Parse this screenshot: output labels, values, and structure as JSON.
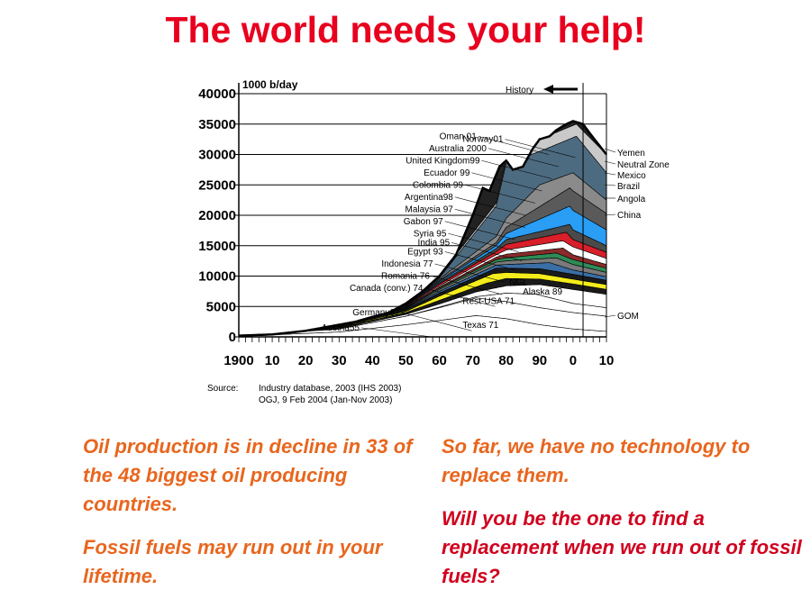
{
  "title": "The world needs your help!",
  "chart_data": {
    "type": "area",
    "unit_label": "1000 b/day",
    "ylim": [
      0,
      40000
    ],
    "y_ticks": [
      0,
      5000,
      10000,
      15000,
      20000,
      25000,
      30000,
      35000,
      40000
    ],
    "y_tick_labels": [
      "0",
      "5000",
      "10000",
      "15000",
      "20000",
      "25000",
      "30000",
      "35000",
      "40000"
    ],
    "xlim": [
      1900,
      2010
    ],
    "x_ticks": [
      1900,
      1910,
      1920,
      1930,
      1940,
      1950,
      1960,
      1970,
      1980,
      1990,
      2000,
      2010
    ],
    "x_tick_labels": [
      "1900",
      "10",
      "20",
      "30",
      "40",
      "50",
      "60",
      "70",
      "80",
      "90",
      "0",
      "10"
    ],
    "grid": true,
    "history_label": "History",
    "history_end_year": 2003,
    "total": {
      "x": [
        1900,
        1910,
        1920,
        1930,
        1935,
        1940,
        1945,
        1950,
        1955,
        1960,
        1965,
        1970,
        1973,
        1975,
        1978,
        1980,
        1982,
        1985,
        1988,
        1990,
        1993,
        1995,
        1998,
        2000,
        2003,
        2005,
        2010
      ],
      "y": [
        200,
        400,
        1000,
        2000,
        2500,
        3300,
        4000,
        5500,
        7500,
        10000,
        13500,
        20000,
        24500,
        24000,
        28000,
        29000,
        27500,
        28000,
        31000,
        32500,
        33000,
        34000,
        35000,
        35500,
        35000,
        33500,
        30000
      ]
    },
    "bands": [
      {
        "name": "Texas 71",
        "color": "#ffffff",
        "x": [
          1900,
          1930,
          1950,
          1960,
          1971,
          1980,
          1990,
          2000,
          2010
        ],
        "y": [
          100,
          800,
          2000,
          2700,
          3500,
          3000,
          2000,
          1300,
          900
        ]
      },
      {
        "name": "Rest-USA 71",
        "color": "#ffffff",
        "x": [
          1900,
          1930,
          1950,
          1960,
          1971,
          1980,
          1990,
          2000,
          2010
        ],
        "y": [
          150,
          1300,
          3400,
          4800,
          6400,
          5800,
          4800,
          4000,
          3400
        ]
      },
      {
        "name": "Alaska 89",
        "color": "#ffffff",
        "x": [
          1900,
          1930,
          1950,
          1960,
          1971,
          1980,
          1989,
          2000,
          2010
        ],
        "y": [
          150,
          1300,
          3400,
          4900,
          6600,
          7200,
          7000,
          5500,
          4800
        ]
      },
      {
        "name": "NGL",
        "color": "#ffffff",
        "x": [
          1900,
          1930,
          1950,
          1960,
          1971,
          1980,
          1990,
          2000,
          2010
        ],
        "y": [
          200,
          1400,
          3700,
          5400,
          7400,
          8400,
          8600,
          7800,
          7000
        ]
      },
      {
        "name": "Canada (conv.) 74",
        "color": "#1a1a1a",
        "x": [
          1900,
          1930,
          1950,
          1960,
          1974,
          1980,
          1990,
          2000,
          2010
        ],
        "y": [
          200,
          1500,
          4000,
          6000,
          8800,
          9600,
          9500,
          8700,
          7800
        ]
      },
      {
        "name": "Romania 76",
        "color": "#f4ec1c",
        "x": [
          1900,
          1930,
          1950,
          1960,
          1976,
          1980,
          1990,
          2000,
          2010
        ],
        "y": [
          200,
          1600,
          4200,
          6700,
          10400,
          10600,
          10400,
          9500,
          8600
        ]
      },
      {
        "name": "Indonesia 77",
        "color": "#1a1a1a",
        "x": [
          1900,
          1930,
          1950,
          1960,
          1977,
          1980,
          1990,
          2000,
          2010
        ],
        "y": [
          200,
          1700,
          4500,
          7200,
          11300,
          11300,
          11200,
          10300,
          9300
        ]
      },
      {
        "name": "Egypt 93",
        "color": "#3a6ea5",
        "x": [
          1900,
          1930,
          1950,
          1960,
          1977,
          1980,
          1993,
          2000,
          2010
        ],
        "y": [
          200,
          1700,
          4600,
          7500,
          11800,
          11900,
          12200,
          11000,
          9900
        ]
      },
      {
        "name": "India 95",
        "color": "#7a7a7a",
        "x": [
          1900,
          1930,
          1950,
          1960,
          1977,
          1980,
          1995,
          2000,
          2010
        ],
        "y": [
          200,
          1800,
          4700,
          7800,
          12300,
          12500,
          13000,
          11900,
          10600
        ]
      },
      {
        "name": "Syria 95",
        "color": "#2e8b57",
        "x": [
          1900,
          1930,
          1950,
          1960,
          1977,
          1980,
          1995,
          2000,
          2010
        ],
        "y": [
          200,
          1800,
          4800,
          8000,
          12700,
          13000,
          13800,
          12700,
          11300
        ]
      },
      {
        "name": "Gabon 97",
        "color": "#8b2a2a",
        "x": [
          1900,
          1930,
          1950,
          1960,
          1977,
          1980,
          1997,
          2000,
          2010
        ],
        "y": [
          200,
          1800,
          4900,
          8200,
          13100,
          13600,
          14600,
          13500,
          11900
        ]
      },
      {
        "name": "Malaysia 97",
        "color": "#ffffff",
        "x": [
          1900,
          1930,
          1950,
          1960,
          1977,
          1980,
          1997,
          2000,
          2010
        ],
        "y": [
          200,
          1800,
          5000,
          8400,
          13500,
          14300,
          15800,
          14800,
          12900
        ]
      },
      {
        "name": "Argentina 98",
        "color": "#d81f2a",
        "x": [
          1900,
          1930,
          1950,
          1960,
          1977,
          1980,
          1998,
          2000,
          2010
        ],
        "y": [
          200,
          1800,
          5100,
          8700,
          14000,
          15200,
          17200,
          16000,
          13900
        ]
      },
      {
        "name": "Colombia 99",
        "color": "#4a4a4a",
        "x": [
          1900,
          1930,
          1950,
          1960,
          1977,
          1980,
          1999,
          2000,
          2010
        ],
        "y": [
          200,
          1800,
          5200,
          8900,
          14500,
          16000,
          18500,
          17600,
          15000
        ]
      },
      {
        "name": "Ecuador 99",
        "color": "#2a9df4",
        "x": [
          1900,
          1930,
          1950,
          1960,
          1977,
          1980,
          1999,
          2000,
          2010
        ],
        "y": [
          200,
          1800,
          5300,
          9100,
          15000,
          17000,
          21500,
          20800,
          17600
        ]
      },
      {
        "name": "United Kingdom 99",
        "color": "#5a5a5a",
        "x": [
          1900,
          1930,
          1950,
          1960,
          1977,
          1980,
          1999,
          2000,
          2010
        ],
        "y": [
          200,
          1800,
          5300,
          9300,
          15500,
          18000,
          24500,
          24000,
          20300
        ]
      },
      {
        "name": "Australia 2000",
        "color": "#8a8a8a",
        "x": [
          1900,
          1930,
          1950,
          1960,
          1977,
          1980,
          1990,
          2000,
          2010
        ],
        "y": [
          200,
          1800,
          5300,
          9500,
          16500,
          19500,
          25000,
          27000,
          22500
        ]
      },
      {
        "name": "Oman 01",
        "color": "#4d6b80",
        "x": [
          1900,
          1930,
          1950,
          1960,
          1977,
          1980,
          1990,
          2001,
          2010
        ],
        "y": [
          200,
          1900,
          5400,
          9700,
          21500,
          28500,
          30500,
          33000,
          27000
        ]
      },
      {
        "name": "Norway 01",
        "color": "#c9c9c9",
        "x": [
          1900,
          1930,
          1950,
          1960,
          1977,
          1980,
          1990,
          2001,
          2010
        ],
        "y": [
          200,
          2000,
          5500,
          10000,
          22000,
          29000,
          32500,
          35000,
          30000
        ]
      }
    ],
    "band_labels_left": [
      {
        "text": "Oman 01",
        "x": 1990,
        "y": 33000
      },
      {
        "text": "Norway01",
        "x": 1998,
        "y": 32500
      },
      {
        "text": "Australia 2000",
        "x": 1993,
        "y": 31000
      },
      {
        "text": "United Kingdom99",
        "x": 1991,
        "y": 29000
      },
      {
        "text": "Ecuador 99",
        "x": 1988,
        "y": 27000
      },
      {
        "text": "Colombia 99",
        "x": 1986,
        "y": 25000
      },
      {
        "text": "Argentina98",
        "x": 1983,
        "y": 23000
      },
      {
        "text": "Malaysia 97",
        "x": 1983,
        "y": 21000
      },
      {
        "text": "Gabon 97",
        "x": 1980,
        "y": 19000
      },
      {
        "text": "Syria 95",
        "x": 1981,
        "y": 17000
      },
      {
        "text": "India 95",
        "x": 1982,
        "y": 15500
      },
      {
        "text": "Egypt 93",
        "x": 1980,
        "y": 14000
      },
      {
        "text": "Indonesia 77",
        "x": 1977,
        "y": 12000
      },
      {
        "text": "Romania 76",
        "x": 1976,
        "y": 10000
      },
      {
        "text": "Canada (conv.) 74",
        "x": 1974,
        "y": 8000
      },
      {
        "text": "Germany67",
        "x": 1967,
        "y": 4000
      },
      {
        "text": "Austria55",
        "x": 1955,
        "y": 1500
      }
    ],
    "band_labels_inner": [
      {
        "text": "NGL",
        "x": 1985,
        "y": 8500
      },
      {
        "text": "Alaska 89",
        "x": 1989,
        "y": 7000
      },
      {
        "text": "Rest-USA 71",
        "x": 1971,
        "y": 5400
      },
      {
        "text": "Texas 71",
        "x": 1971,
        "y": 1500
      }
    ],
    "band_labels_right": [
      "Yemen",
      "Neutral Zone",
      "Mexico",
      "Brazil",
      "Angola",
      "China",
      "GOM"
    ],
    "source": {
      "label": "Source:",
      "lines": [
        "Industry database, 2003 (IHS 2003)",
        "OGJ, 9 Feb 2004 (Jan-Nov 2003)"
      ]
    }
  },
  "left_text": {
    "p1": "Oil production is in decline in 33 of the 48 biggest oil producing countries.",
    "p2": "Fossil fuels may run out in your lifetime."
  },
  "right_text": {
    "p1": "So far, we have no technology to replace them.",
    "p2": "Will you be the one to find a replacement when we run out of fossil fuels?"
  }
}
